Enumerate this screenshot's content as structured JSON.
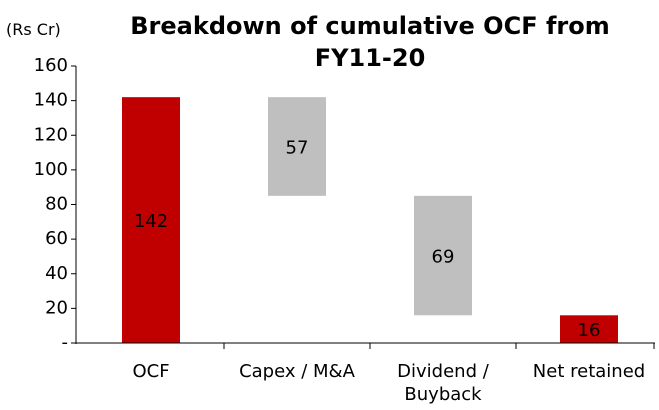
{
  "chart_data": {
    "type": "waterfall",
    "title": "Breakdown of cumulative OCF from FY11-20",
    "y_axis_label": "(Rs Cr)",
    "categories": [
      "OCF",
      "Capex / M&A",
      "Dividend / Buyback",
      "Net retained"
    ],
    "values": [
      142,
      57,
      69,
      16
    ],
    "measures": [
      "total",
      "decrease",
      "decrease",
      "total"
    ],
    "colors": [
      "#c00000",
      "#bfbfbf",
      "#bfbfbf",
      "#c00000"
    ],
    "ylim": [
      0,
      160
    ],
    "yticks": [
      {
        "value": 0,
        "label": "-"
      },
      20,
      40,
      60,
      80,
      100,
      120,
      140,
      160
    ]
  }
}
